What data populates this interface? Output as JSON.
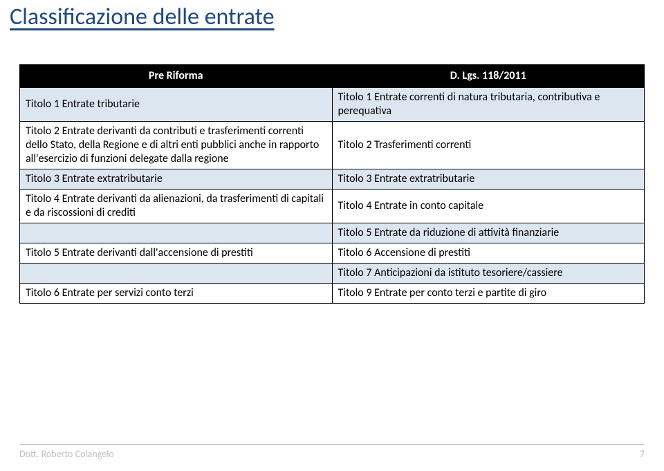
{
  "title": "Classificazione delle entrate",
  "headers": {
    "left": "Pre Riforma",
    "right": "D. Lgs. 118/2011"
  },
  "rows": [
    {
      "band": true,
      "left": "Titolo 1 Entrate tributarie",
      "right": "Titolo 1 Entrate correnti di natura tributaria, contributiva e perequativa"
    },
    {
      "band": false,
      "left": "Titolo 2 Entrate derivanti da contributi e trasferimenti correnti dello Stato, della Regione e di altri enti pubblici anche in rapporto all'esercizio di funzioni delegate dalla regione",
      "right": "Titolo 2 Trasferimenti correnti"
    },
    {
      "band": true,
      "left": "Titolo 3 Entrate extratributarie",
      "right": "Titolo 3 Entrate extratributarie"
    },
    {
      "band": false,
      "left": "Titolo 4 Entrate derivanti da alienazioni, da trasferimenti di capitali e da riscossioni di crediti",
      "right": "Titolo 4 Entrate in conto capitale"
    },
    {
      "band": true,
      "left": "",
      "right": "Titolo 5 Entrate da riduzione di attività finanziarie"
    },
    {
      "band": false,
      "left": "Titolo 5 Entrate derivanti dall'accensione di prestiti",
      "right": "Titolo 6 Accensione di prestiti"
    },
    {
      "band": true,
      "left": "",
      "right": "Titolo 7 Anticipazioni da istituto tesoriere/cassiere"
    },
    {
      "band": false,
      "left": "Titolo 6 Entrate per servizi conto terzi",
      "right": "Titolo 9 Entrate per conto terzi e partite di giro"
    }
  ],
  "footer": {
    "author": "Dott. Roberto Colangelo",
    "page": "7"
  },
  "colors": {
    "title": "#1f497d",
    "band_bg": "#dce6f1",
    "header_bg": "#000000",
    "header_fg": "#ffffff",
    "footer_fg": "#bfbfbf"
  }
}
